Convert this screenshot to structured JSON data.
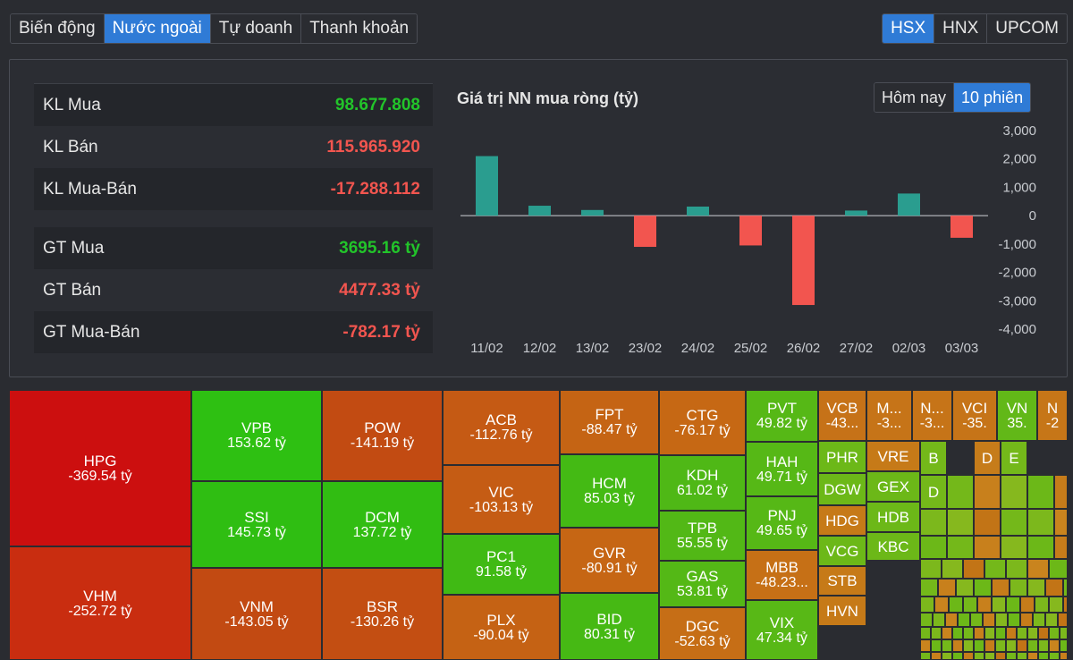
{
  "tabs": [
    {
      "label": "Biến động",
      "active": false
    },
    {
      "label": "Nước ngoài",
      "active": true
    },
    {
      "label": "Tự doanh",
      "active": false
    },
    {
      "label": "Thanh khoản",
      "active": false
    }
  ],
  "exchanges": [
    {
      "label": "HSX",
      "active": true
    },
    {
      "label": "HNX",
      "active": false
    },
    {
      "label": "UPCOM",
      "active": false
    }
  ],
  "volume_stats": [
    {
      "label": "KL Mua",
      "value": "98.677.808",
      "tone": "g"
    },
    {
      "label": "KL Bán",
      "value": "115.965.920",
      "tone": "r"
    },
    {
      "label": "KL Mua-Bán",
      "value": "-17.288.112",
      "tone": "r"
    }
  ],
  "value_stats": [
    {
      "label": "GT Mua",
      "value": "3695.16 tỷ",
      "tone": "g"
    },
    {
      "label": "GT Bán",
      "value": "4477.33 tỷ",
      "tone": "r"
    },
    {
      "label": "GT Mua-Bán",
      "value": "-782.17 tỷ",
      "tone": "r"
    }
  ],
  "chart_panel": {
    "title": "Giá trị NN mua ròng (tỷ)",
    "range_buttons": [
      {
        "label": "Hôm nay",
        "active": false
      },
      {
        "label": "10 phiên",
        "active": true
      }
    ]
  },
  "colors": {
    "positive": "#2a9d8f",
    "negative": "#f2554f",
    "accent": "#2f7bd6"
  },
  "chart_data": {
    "type": "bar",
    "title": "Giá trị NN mua ròng (tỷ)",
    "categories": [
      "11/02",
      "12/02",
      "13/02",
      "23/02",
      "24/02",
      "25/02",
      "26/02",
      "27/02",
      "02/03",
      "03/03"
    ],
    "values": [
      2100,
      350,
      200,
      -1100,
      320,
      -1050,
      -3150,
      180,
      780,
      -780
    ],
    "ylim": [
      -4000,
      3000
    ],
    "yticks": [
      3000,
      2000,
      1000,
      0,
      -1000,
      -2000,
      -3000,
      -4000
    ],
    "ytick_labels": [
      "3,000",
      "2,000",
      "1,000",
      "0",
      "-1,000",
      "-2,000",
      "-3,000",
      "-4,000"
    ],
    "grid": false,
    "y_axis_side": "right"
  },
  "treemap": [
    {
      "ticker": "HPG",
      "value": "-369.54 tỷ",
      "color": "#cc0f0f"
    },
    {
      "ticker": "VHM",
      "value": "-252.72 tỷ",
      "color": "#c92d10"
    },
    {
      "ticker": "VPB",
      "value": "153.62 tỷ",
      "color": "#2ec012"
    },
    {
      "ticker": "SSI",
      "value": "145.73 tỷ",
      "color": "#2fbe12"
    },
    {
      "ticker": "POW",
      "value": "-141.19 tỷ",
      "color": "#c24b12"
    },
    {
      "ticker": "DCM",
      "value": "137.72 tỷ",
      "color": "#31bd12"
    },
    {
      "ticker": "VNM",
      "value": "-143.05 tỷ",
      "color": "#c24a12"
    },
    {
      "ticker": "BSR",
      "value": "-130.26 tỷ",
      "color": "#c34e12"
    },
    {
      "ticker": "ACB",
      "value": "-112.76 tỷ",
      "color": "#c55a14"
    },
    {
      "ticker": "VIC",
      "value": "-103.13 tỷ",
      "color": "#c55c14"
    },
    {
      "ticker": "PC1",
      "value": "91.58 tỷ",
      "color": "#40ba14"
    },
    {
      "ticker": "PLX",
      "value": "-90.04 tỷ",
      "color": "#c56214"
    },
    {
      "ticker": "FPT",
      "value": "-88.47 tỷ",
      "color": "#c56414"
    },
    {
      "ticker": "HCM",
      "value": "85.03 tỷ",
      "color": "#44ba14"
    },
    {
      "ticker": "GVR",
      "value": "-80.91 tỷ",
      "color": "#c66614"
    },
    {
      "ticker": "BID",
      "value": "80.31 tỷ",
      "color": "#46b914"
    },
    {
      "ticker": "CTG",
      "value": "-76.17 tỷ",
      "color": "#c66814"
    },
    {
      "ticker": "KDH",
      "value": "61.02 tỷ",
      "color": "#4fb816"
    },
    {
      "ticker": "TPB",
      "value": "55.55 tỷ",
      "color": "#52b816"
    },
    {
      "ticker": "GAS",
      "value": "53.81 tỷ",
      "color": "#54b816"
    },
    {
      "ticker": "DGC",
      "value": "-52.63 tỷ",
      "color": "#c66e16"
    },
    {
      "ticker": "PVT",
      "value": "49.82 tỷ",
      "color": "#56b816"
    },
    {
      "ticker": "HAH",
      "value": "49.71 tỷ",
      "color": "#56b816"
    },
    {
      "ticker": "PNJ",
      "value": "49.65 tỷ",
      "color": "#56b816"
    },
    {
      "ticker": "MBB",
      "value": "-48.23...",
      "color": "#c67016"
    },
    {
      "ticker": "VIX",
      "value": "47.34 tỷ",
      "color": "#58b816"
    },
    {
      "ticker": "VCB",
      "value": "-43...",
      "color": "#c67218"
    },
    {
      "ticker": "M...",
      "value": "-3...",
      "color": "#c67418"
    },
    {
      "ticker": "N...",
      "value": "-3...",
      "color": "#c67418"
    },
    {
      "ticker": "VCI",
      "value": "-35.",
      "color": "#c67418"
    },
    {
      "ticker": "VN",
      "value": "35.",
      "color": "#62b818"
    },
    {
      "ticker": "N",
      "value": "-2",
      "color": "#c67618"
    },
    {
      "ticker": "PHR",
      "value": "",
      "color": "#6cb818"
    },
    {
      "ticker": "DGW",
      "value": "",
      "color": "#6cb818"
    },
    {
      "ticker": "HDG",
      "value": "",
      "color": "#c67a18"
    },
    {
      "ticker": "VCG",
      "value": "",
      "color": "#6cb818"
    },
    {
      "ticker": "STB",
      "value": "",
      "color": "#c67a18"
    },
    {
      "ticker": "HVN",
      "value": "",
      "color": "#c67a18"
    },
    {
      "ticker": "VRE",
      "value": "",
      "color": "#c67a18"
    },
    {
      "ticker": "GEX",
      "value": "",
      "color": "#6cb818"
    },
    {
      "ticker": "HDB",
      "value": "",
      "color": "#6cb818"
    },
    {
      "ticker": "KBC",
      "value": "",
      "color": "#6cb818"
    },
    {
      "ticker": "B",
      "value": "",
      "color": "#74b81a"
    },
    {
      "ticker": "D",
      "value": "",
      "color": "#c67c1a"
    },
    {
      "ticker": "E",
      "value": "",
      "color": "#74b81a"
    },
    {
      "ticker": "D",
      "value": "",
      "color": "#74b81a"
    }
  ]
}
